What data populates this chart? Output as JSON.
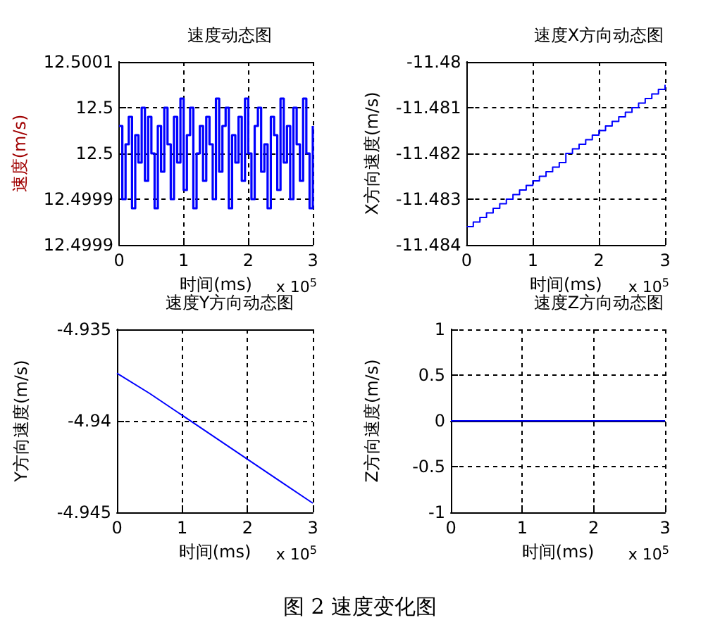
{
  "chart_data": [
    {
      "type": "step",
      "title": "速度动态图",
      "xlabel": "时间(ms)",
      "ylabel": "速度(m/s)",
      "annotations": [
        "x 10$^{5}$"
      ],
      "x": [
        0,
        0.05,
        0.1,
        0.15,
        0.2,
        0.25,
        0.3,
        0.35,
        0.4,
        0.45,
        0.5,
        0.55,
        0.6,
        0.65,
        0.7,
        0.75,
        0.8,
        0.85,
        0.9,
        0.95,
        1,
        1.05,
        1.1,
        1.15,
        1.2,
        1.25,
        1.3,
        1.35,
        1.4,
        1.45,
        1.5,
        1.55,
        1.6,
        1.65,
        1.7,
        1.75,
        1.8,
        1.85,
        1.9,
        1.95,
        2,
        2.05,
        2.1,
        2.15,
        2.2,
        2.25,
        2.3,
        2.35,
        2.4,
        2.45,
        2.5,
        2.55,
        2.6,
        2.65,
        2.7,
        2.75,
        2.8,
        2.85,
        2.9,
        2.95,
        3
      ],
      "series": [
        {
          "color": "#0000ff",
          "values": [
            12.49998,
            12.4999,
            12.49996,
            12.49999,
            12.49989,
            12.49997,
            12.49994,
            12.5,
            12.49992,
            12.49999,
            12.49995,
            12.49989,
            12.49998,
            12.49993,
            12.5,
            12.49996,
            12.4999,
            12.49999,
            12.49994,
            12.50001,
            12.49991,
            12.49997,
            12.5,
            12.49989,
            12.49995,
            12.49998,
            12.49992,
            12.49999,
            12.49996,
            12.4999,
            12.50001,
            12.49993,
            12.49998,
            12.5,
            12.49989,
            12.49997,
            12.49994,
            12.49999,
            12.49992,
            12.50001,
            12.49995,
            12.4999,
            12.49998,
            12.5,
            12.49993,
            12.49996,
            12.49989,
            12.49999,
            12.49997,
            12.49991,
            12.50001,
            12.49994,
            12.49998,
            12.4999,
            12.5,
            12.49996,
            12.49992,
            12.50001,
            12.49995,
            12.49989,
            12.49998
          ]
        }
      ],
      "xlim": [
        0,
        3
      ],
      "xticks": [
        0,
        1,
        2,
        3
      ],
      "ylim": [
        12.49985,
        12.50005
      ],
      "yticks": [
        {
          "value": 12.49985,
          "label": "12.4999"
        },
        {
          "value": 12.4999,
          "label": "12.4999"
        },
        {
          "value": 12.49995,
          "label": "12.5"
        },
        {
          "value": 12.5,
          "label": "12.5"
        },
        {
          "value": 12.50005,
          "label": "12.5001"
        }
      ],
      "grid": true
    },
    {
      "type": "step",
      "title": "速度X方向动态图",
      "xlabel": "时间(ms)",
      "ylabel": "X方向速度(m/s)",
      "annotations": [
        "x 10$^{5}$"
      ],
      "x": [
        0,
        0.1,
        0.2,
        0.3,
        0.4,
        0.5,
        0.6,
        0.7,
        0.8,
        0.9,
        1,
        1.1,
        1.2,
        1.3,
        1.4,
        1.5,
        1.6,
        1.7,
        1.8,
        1.9,
        2,
        2.1,
        2.2,
        2.3,
        2.4,
        2.5,
        2.6,
        2.7,
        2.8,
        2.9,
        3
      ],
      "series": [
        {
          "color": "#0000ff",
          "values": [
            -11.4836,
            -11.4835,
            -11.4834,
            -11.4833,
            -11.4832,
            -11.4831,
            -11.483,
            -11.4829,
            -11.4828,
            -11.4827,
            -11.4826,
            -11.4825,
            -11.4824,
            -11.4823,
            -11.4822,
            -11.482,
            -11.4819,
            -11.4818,
            -11.4817,
            -11.4816,
            -11.4815,
            -11.4814,
            -11.4813,
            -11.4812,
            -11.4811,
            -11.481,
            -11.4809,
            -11.4808,
            -11.4807,
            -11.4806,
            -11.4805
          ]
        }
      ],
      "xlim": [
        0,
        3
      ],
      "xticks": [
        0,
        1,
        2,
        3
      ],
      "ylim": [
        -11.484,
        -11.48
      ],
      "yticks": [
        -11.484,
        -11.483,
        -11.482,
        -11.481,
        -11.48
      ],
      "grid": true
    },
    {
      "type": "line",
      "title": "速度Y方向动态图",
      "xlabel": "时间(ms)",
      "ylabel": "Y方向速度(m/s)",
      "annotations": [
        "x 10$^{5}$"
      ],
      "x": [
        0,
        0.5,
        1,
        1.5,
        2,
        2.5,
        3
      ],
      "series": [
        {
          "color": "#0000ff",
          "values": [
            -4.9374,
            -4.9385,
            -4.9397,
            -4.9409,
            -4.9421,
            -4.9433,
            -4.9445
          ]
        }
      ],
      "xlim": [
        0,
        3
      ],
      "xticks": [
        0,
        1,
        2,
        3
      ],
      "ylim": [
        -4.945,
        -4.935
      ],
      "yticks": [
        -4.945,
        -4.94,
        -4.935
      ],
      "grid": true
    },
    {
      "type": "line",
      "title": "速度Z方向动态图",
      "xlabel": "时间(ms)",
      "ylabel": "Z方向速度(m/s)",
      "annotations": [
        "x 10$^{5}$",
        "图 2 速度变化图"
      ],
      "x": [
        0,
        3
      ],
      "series": [
        {
          "color": "#0000ff",
          "values": [
            0,
            0
          ]
        }
      ],
      "xlim": [
        0,
        3
      ],
      "xticks": [
        0,
        1,
        2,
        3
      ],
      "ylim": [
        -1,
        1
      ],
      "yticks": [
        -1,
        -0.5,
        0,
        0.5,
        1
      ],
      "grid": true
    }
  ]
}
